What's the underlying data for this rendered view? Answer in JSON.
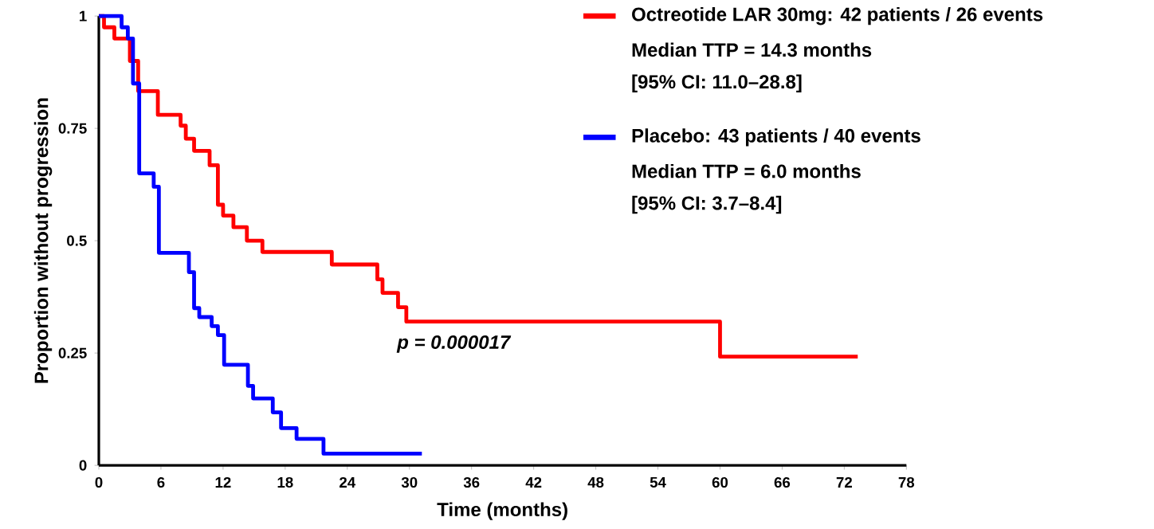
{
  "chart_data": {
    "type": "step",
    "xlabel": "Time (months)",
    "ylabel": "Proportion without progression",
    "xlim": [
      0,
      78
    ],
    "xticks": [
      0,
      6,
      12,
      18,
      24,
      30,
      36,
      42,
      48,
      54,
      60,
      66,
      72,
      78
    ],
    "ylim": [
      0,
      1
    ],
    "yticks": [
      0,
      {
        "value": 0.25,
        "label": "0.25"
      },
      {
        "value": 0.5,
        "label": "0.5"
      },
      {
        "value": 0.75,
        "label": "0.75"
      },
      1
    ],
    "legend": "top right",
    "line_style": "solid",
    "marker": "none",
    "series": [
      {
        "name": "Octreotide LAR 30mg: 42 patients / 26 events",
        "color": "#ff0000",
        "x": [
          0,
          0.5,
          1.5,
          3.0,
          3.8,
          5.7,
          7.9,
          8.4,
          9.2,
          10.7,
          11.5,
          12.0,
          13.0,
          14.3,
          15.8,
          22.5,
          26.9,
          27.4,
          28.9,
          29.7,
          60.0,
          73.3
        ],
        "values": [
          1.0,
          0.975,
          0.95,
          0.9,
          0.833,
          0.78,
          0.756,
          0.727,
          0.7,
          0.668,
          0.58,
          0.556,
          0.53,
          0.5,
          0.475,
          0.447,
          0.414,
          0.384,
          0.352,
          0.32,
          0.242,
          0.242
        ]
      },
      {
        "name": "Placebo: 43 patients / 40 events",
        "color": "#0000ff",
        "x": [
          0,
          2.2,
          2.8,
          3.3,
          3.9,
          5.3,
          5.8,
          8.7,
          9.2,
          9.7,
          10.9,
          11.5,
          12.1,
          14.4,
          14.9,
          16.8,
          17.6,
          19.1,
          21.7,
          31.2
        ],
        "values": [
          1.0,
          0.975,
          0.95,
          0.85,
          0.65,
          0.62,
          0.473,
          0.43,
          0.35,
          0.33,
          0.31,
          0.29,
          0.224,
          0.177,
          0.149,
          0.118,
          0.083,
          0.059,
          0.026,
          0.026
        ]
      }
    ],
    "annotations": [
      "Median TTP = 14.3 months",
      "[95% CI: 11.0–28.8]",
      "Median TTP = 6.0 months",
      "[95% CI: 3.7–8.4]",
      "p = 0.000017"
    ]
  }
}
